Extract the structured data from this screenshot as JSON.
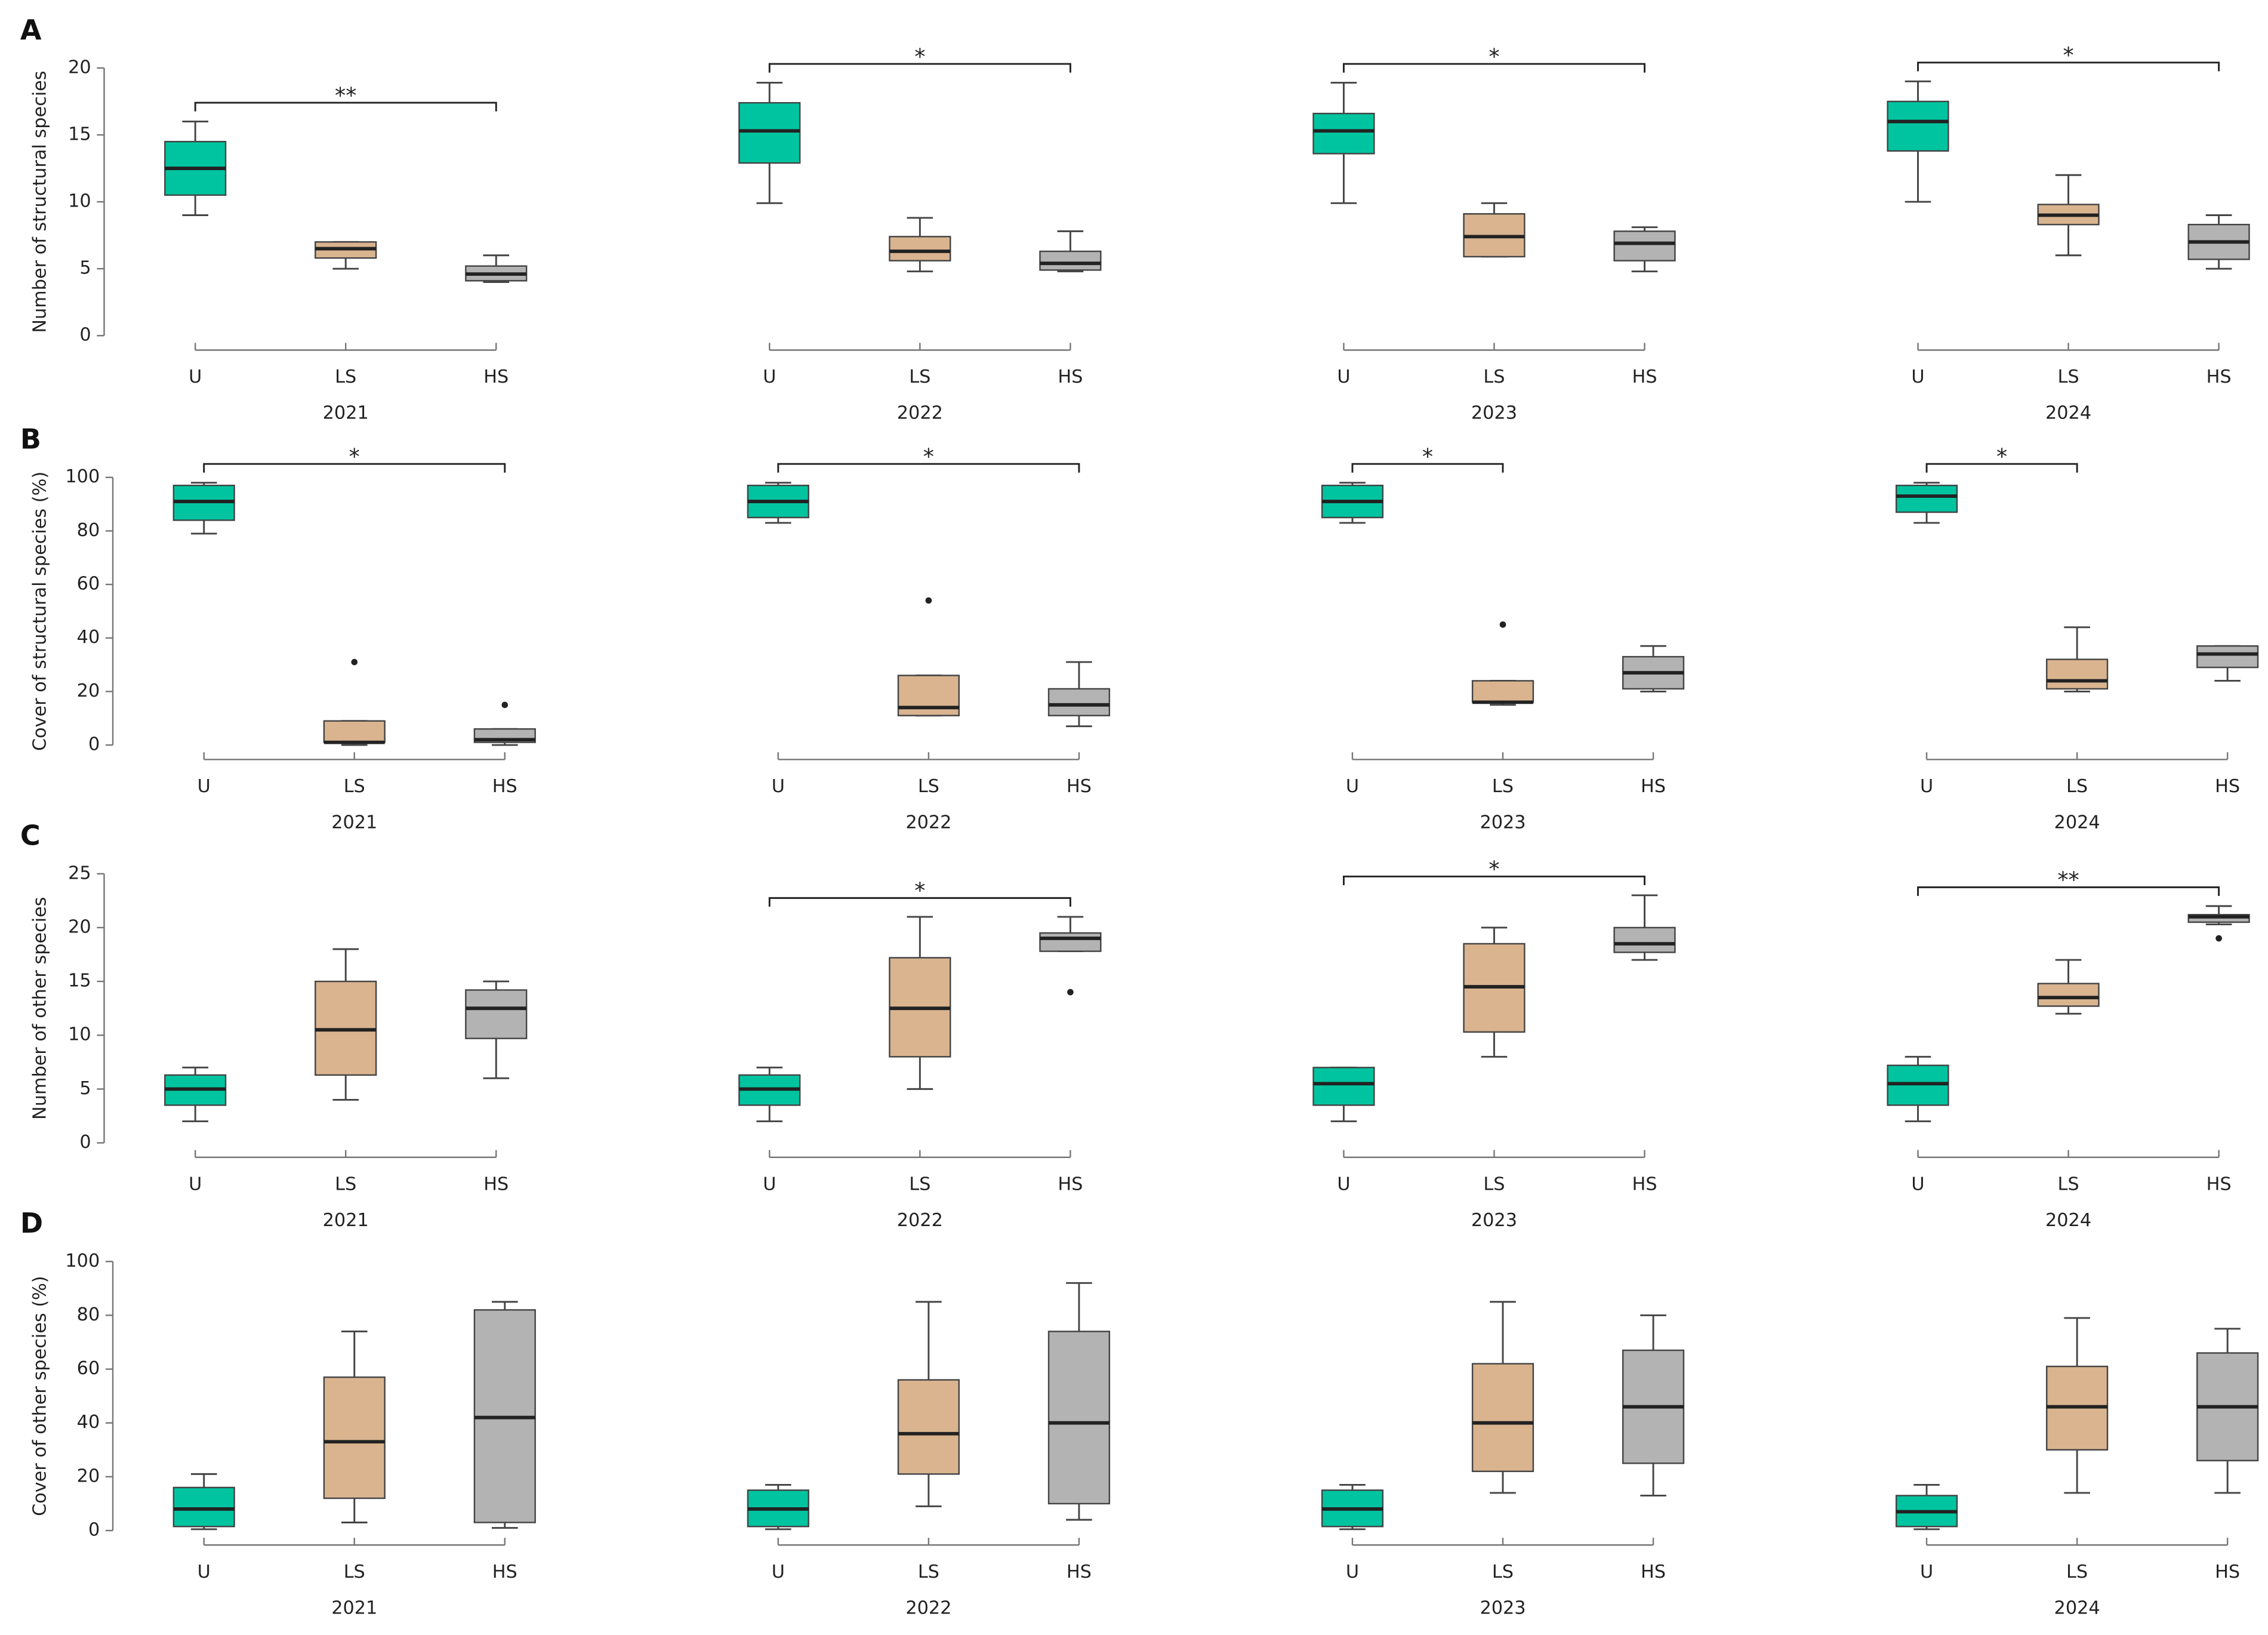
{
  "chart_data": [
    {
      "type": "box",
      "panel_label": "A",
      "ylabel": "Number of structural species",
      "xlabel": "2021",
      "categories": [
        "U",
        "LS",
        "HS"
      ],
      "colors": [
        "#00c4a0",
        "#d9b48f",
        "#b3b3b3"
      ],
      "ylim": [
        0,
        20
      ],
      "yticks": [
        0,
        5,
        10,
        15,
        20
      ],
      "boxes": [
        {
          "min": 9,
          "q1": 10.5,
          "median": 12.5,
          "q3": 14.5,
          "max": 16
        },
        {
          "min": 5,
          "q1": 5.8,
          "median": 6.5,
          "q3": 7,
          "max": 7
        },
        {
          "min": 4,
          "q1": 4.1,
          "median": 4.6,
          "q3": 5.2,
          "max": 6
        }
      ],
      "significance": [
        {
          "pair": [
            "U",
            "HS"
          ],
          "label": "**"
        }
      ]
    },
    {
      "type": "box",
      "xlabel": "2022",
      "categories": [
        "U",
        "LS",
        "HS"
      ],
      "colors": [
        "#00c4a0",
        "#d9b48f",
        "#b3b3b3"
      ],
      "ylim": [
        0,
        20
      ],
      "boxes": [
        {
          "min": 9.9,
          "q1": 12.9,
          "median": 15.3,
          "q3": 17.4,
          "max": 18.9
        },
        {
          "min": 4.8,
          "q1": 5.6,
          "median": 6.3,
          "q3": 7.4,
          "max": 8.8
        },
        {
          "min": 4.8,
          "q1": 4.9,
          "median": 5.4,
          "q3": 6.3,
          "max": 7.8
        }
      ],
      "significance": [
        {
          "pair": [
            "U",
            "HS"
          ],
          "label": "*"
        }
      ]
    },
    {
      "type": "box",
      "xlabel": "2023",
      "categories": [
        "U",
        "LS",
        "HS"
      ],
      "colors": [
        "#00c4a0",
        "#d9b48f",
        "#b3b3b3"
      ],
      "ylim": [
        0,
        20
      ],
      "boxes": [
        {
          "min": 9.9,
          "q1": 13.6,
          "median": 15.3,
          "q3": 16.6,
          "max": 18.9
        },
        {
          "min": 5.9,
          "q1": 5.9,
          "median": 7.4,
          "q3": 9.1,
          "max": 9.9
        },
        {
          "min": 4.8,
          "q1": 5.6,
          "median": 6.9,
          "q3": 7.8,
          "max": 8.1
        }
      ],
      "significance": [
        {
          "pair": [
            "U",
            "HS"
          ],
          "label": "*"
        }
      ]
    },
    {
      "type": "box",
      "xlabel": "2024",
      "categories": [
        "U",
        "LS",
        "HS"
      ],
      "colors": [
        "#00c4a0",
        "#d9b48f",
        "#b3b3b3"
      ],
      "ylim": [
        0,
        20
      ],
      "boxes": [
        {
          "min": 10,
          "q1": 13.8,
          "median": 16,
          "q3": 17.5,
          "max": 19
        },
        {
          "min": 6,
          "q1": 8.3,
          "median": 9,
          "q3": 9.8,
          "max": 12
        },
        {
          "min": 5,
          "q1": 5.7,
          "median": 7,
          "q3": 8.3,
          "max": 9
        }
      ],
      "significance": [
        {
          "pair": [
            "U",
            "HS"
          ],
          "label": "*"
        }
      ]
    },
    {
      "type": "box",
      "panel_label": "B",
      "ylabel": "Cover of structural species (%)",
      "xlabel": "2021",
      "categories": [
        "U",
        "LS",
        "HS"
      ],
      "colors": [
        "#00c4a0",
        "#d9b48f",
        "#b3b3b3"
      ],
      "ylim": [
        0,
        100
      ],
      "yticks": [
        0,
        20,
        40,
        60,
        80,
        100
      ],
      "boxes": [
        {
          "min": 79,
          "q1": 84,
          "median": 91,
          "q3": 97,
          "max": 98
        },
        {
          "min": 0,
          "q1": 1,
          "median": 1,
          "q3": 9,
          "max": 9,
          "outliers": [
            31
          ]
        },
        {
          "min": 0,
          "q1": 1,
          "median": 2,
          "q3": 6,
          "max": 6,
          "outliers": [
            15
          ]
        }
      ],
      "significance": [
        {
          "pair": [
            "U",
            "HS"
          ],
          "label": "*"
        }
      ]
    },
    {
      "type": "box",
      "xlabel": "2022",
      "categories": [
        "U",
        "LS",
        "HS"
      ],
      "colors": [
        "#00c4a0",
        "#d9b48f",
        "#b3b3b3"
      ],
      "ylim": [
        0,
        100
      ],
      "boxes": [
        {
          "min": 83,
          "q1": 85,
          "median": 91,
          "q3": 97,
          "max": 98
        },
        {
          "min": 11,
          "q1": 11,
          "median": 14,
          "q3": 26,
          "max": 26,
          "outliers": [
            54
          ]
        },
        {
          "min": 7,
          "q1": 11,
          "median": 15,
          "q3": 21,
          "max": 31
        }
      ],
      "significance": [
        {
          "pair": [
            "U",
            "HS"
          ],
          "label": "*"
        }
      ]
    },
    {
      "type": "box",
      "xlabel": "2023",
      "categories": [
        "U",
        "LS",
        "HS"
      ],
      "colors": [
        "#00c4a0",
        "#d9b48f",
        "#b3b3b3"
      ],
      "ylim": [
        0,
        100
      ],
      "boxes": [
        {
          "min": 83,
          "q1": 85,
          "median": 91,
          "q3": 97,
          "max": 98
        },
        {
          "min": 15,
          "q1": 16,
          "median": 16,
          "q3": 24,
          "max": 24,
          "outliers": [
            45
          ]
        },
        {
          "min": 20,
          "q1": 21,
          "median": 27,
          "q3": 33,
          "max": 37
        }
      ],
      "significance": [
        {
          "pair": [
            "U",
            "LS"
          ],
          "label": "*"
        }
      ]
    },
    {
      "type": "box",
      "xlabel": "2024",
      "categories": [
        "U",
        "LS",
        "HS"
      ],
      "colors": [
        "#00c4a0",
        "#d9b48f",
        "#b3b3b3"
      ],
      "ylim": [
        0,
        100
      ],
      "boxes": [
        {
          "min": 83,
          "q1": 87,
          "median": 93,
          "q3": 97,
          "max": 98
        },
        {
          "min": 20,
          "q1": 21,
          "median": 24,
          "q3": 32,
          "max": 44
        },
        {
          "min": 24,
          "q1": 29,
          "median": 34,
          "q3": 37,
          "max": 37
        }
      ],
      "significance": [
        {
          "pair": [
            "U",
            "LS"
          ],
          "label": "*"
        }
      ]
    },
    {
      "type": "box",
      "panel_label": "C",
      "ylabel": "Number of other species",
      "xlabel": "2021",
      "categories": [
        "U",
        "LS",
        "HS"
      ],
      "colors": [
        "#00c4a0",
        "#d9b48f",
        "#b3b3b3"
      ],
      "ylim": [
        0,
        25
      ],
      "yticks": [
        0,
        5,
        10,
        15,
        20,
        25
      ],
      "boxes": [
        {
          "min": 2,
          "q1": 3.5,
          "median": 5,
          "q3": 6.3,
          "max": 7
        },
        {
          "min": 4,
          "q1": 6.3,
          "median": 10.5,
          "q3": 15,
          "max": 18
        },
        {
          "min": 6,
          "q1": 9.7,
          "median": 12.5,
          "q3": 14.2,
          "max": 15
        }
      ]
    },
    {
      "type": "box",
      "xlabel": "2022",
      "categories": [
        "U",
        "LS",
        "HS"
      ],
      "colors": [
        "#00c4a0",
        "#d9b48f",
        "#b3b3b3"
      ],
      "ylim": [
        0,
        25
      ],
      "boxes": [
        {
          "min": 2,
          "q1": 3.5,
          "median": 5,
          "q3": 6.3,
          "max": 7
        },
        {
          "min": 5,
          "q1": 8,
          "median": 12.5,
          "q3": 17.2,
          "max": 21
        },
        {
          "min": 17.8,
          "q1": 17.8,
          "median": 19,
          "q3": 19.5,
          "max": 21,
          "outliers": [
            14
          ]
        }
      ],
      "significance": [
        {
          "pair": [
            "U",
            "HS"
          ],
          "label": "*"
        }
      ]
    },
    {
      "type": "box",
      "xlabel": "2023",
      "categories": [
        "U",
        "LS",
        "HS"
      ],
      "colors": [
        "#00c4a0",
        "#d9b48f",
        "#b3b3b3"
      ],
      "ylim": [
        0,
        25
      ],
      "boxes": [
        {
          "min": 2,
          "q1": 3.5,
          "median": 5.5,
          "q3": 7,
          "max": 7
        },
        {
          "min": 8,
          "q1": 10.3,
          "median": 14.5,
          "q3": 18.5,
          "max": 20
        },
        {
          "min": 17,
          "q1": 17.7,
          "median": 18.5,
          "q3": 20,
          "max": 23
        }
      ],
      "significance": [
        {
          "pair": [
            "U",
            "HS"
          ],
          "label": "*"
        }
      ]
    },
    {
      "type": "box",
      "xlabel": "2024",
      "categories": [
        "U",
        "LS",
        "HS"
      ],
      "colors": [
        "#00c4a0",
        "#d9b48f",
        "#b3b3b3"
      ],
      "ylim": [
        0,
        25
      ],
      "boxes": [
        {
          "min": 2,
          "q1": 3.5,
          "median": 5.5,
          "q3": 7.2,
          "max": 8
        },
        {
          "min": 12,
          "q1": 12.7,
          "median": 13.5,
          "q3": 14.8,
          "max": 17
        },
        {
          "min": 20.3,
          "q1": 20.5,
          "median": 21,
          "q3": 21.2,
          "max": 22,
          "outliers": [
            19
          ]
        }
      ],
      "significance": [
        {
          "pair": [
            "U",
            "HS"
          ],
          "label": "**"
        }
      ]
    },
    {
      "type": "box",
      "panel_label": "D",
      "ylabel": "Cover of other species (%)",
      "xlabel": "2021",
      "categories": [
        "U",
        "LS",
        "HS"
      ],
      "colors": [
        "#00c4a0",
        "#d9b48f",
        "#b3b3b3"
      ],
      "ylim": [
        0,
        100
      ],
      "yticks": [
        0,
        20,
        40,
        60,
        80,
        100
      ],
      "boxes": [
        {
          "min": 0.5,
          "q1": 1.5,
          "median": 8,
          "q3": 16,
          "max": 21
        },
        {
          "min": 3,
          "q1": 12,
          "median": 33,
          "q3": 57,
          "max": 74
        },
        {
          "min": 1,
          "q1": 3,
          "median": 42,
          "q3": 82,
          "max": 85
        }
      ]
    },
    {
      "type": "box",
      "xlabel": "2022",
      "categories": [
        "U",
        "LS",
        "HS"
      ],
      "colors": [
        "#00c4a0",
        "#d9b48f",
        "#b3b3b3"
      ],
      "ylim": [
        0,
        100
      ],
      "boxes": [
        {
          "min": 0.5,
          "q1": 1.5,
          "median": 8,
          "q3": 15,
          "max": 17
        },
        {
          "min": 9,
          "q1": 21,
          "median": 36,
          "q3": 56,
          "max": 85
        },
        {
          "min": 4,
          "q1": 10,
          "median": 40,
          "q3": 74,
          "max": 92
        }
      ]
    },
    {
      "type": "box",
      "xlabel": "2023",
      "categories": [
        "U",
        "LS",
        "HS"
      ],
      "colors": [
        "#00c4a0",
        "#d9b48f",
        "#b3b3b3"
      ],
      "ylim": [
        0,
        100
      ],
      "boxes": [
        {
          "min": 0.5,
          "q1": 1.5,
          "median": 8,
          "q3": 15,
          "max": 17
        },
        {
          "min": 14,
          "q1": 22,
          "median": 40,
          "q3": 62,
          "max": 85
        },
        {
          "min": 13,
          "q1": 25,
          "median": 46,
          "q3": 67,
          "max": 80
        }
      ]
    },
    {
      "type": "box",
      "xlabel": "2024",
      "categories": [
        "U",
        "LS",
        "HS"
      ],
      "colors": [
        "#00c4a0",
        "#d9b48f",
        "#b3b3b3"
      ],
      "ylim": [
        0,
        100
      ],
      "boxes": [
        {
          "min": 0.5,
          "q1": 1.5,
          "median": 7,
          "q3": 13,
          "max": 17
        },
        {
          "min": 14,
          "q1": 30,
          "median": 46,
          "q3": 61,
          "max": 79
        },
        {
          "min": 14,
          "q1": 26,
          "median": 46,
          "q3": 66,
          "max": 75
        }
      ]
    }
  ]
}
